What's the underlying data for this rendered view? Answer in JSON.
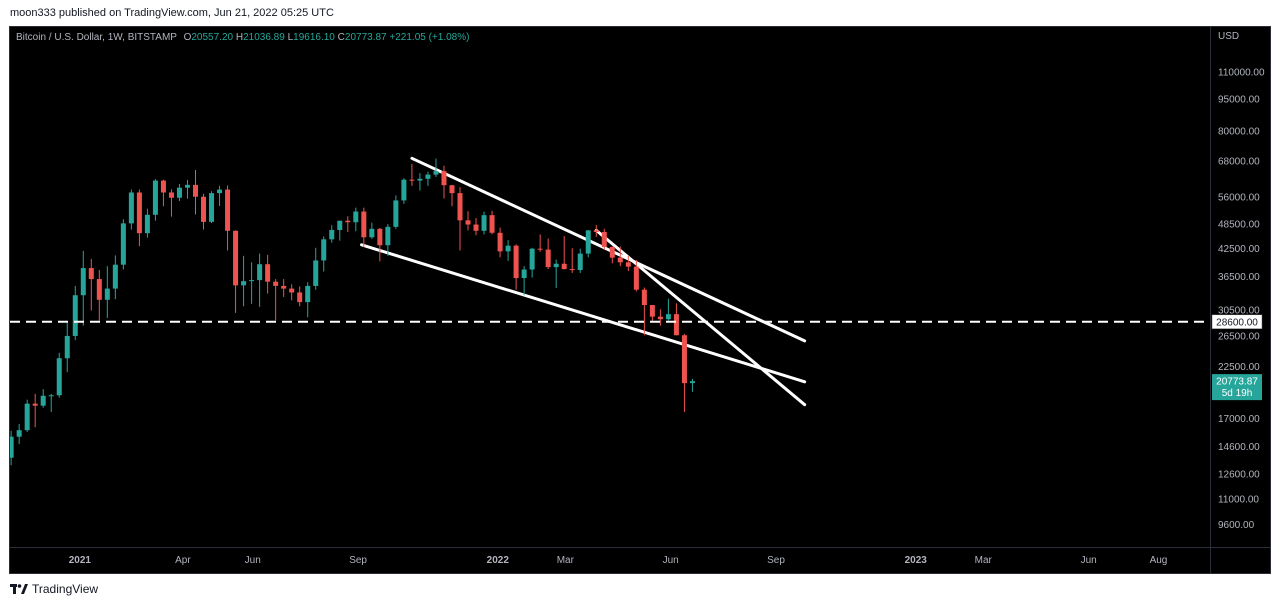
{
  "header": {
    "text": "moon333 published on TradingView.com, Jun 21, 2022 05:25 UTC"
  },
  "legend": {
    "symbol": "Bitcoin / U.S. Dollar, 1W, BITSTAMP",
    "o_label": "O",
    "o": "20557.20",
    "h_label": "H",
    "h": "21036.89",
    "l_label": "L",
    "l": "19616.10",
    "c_label": "C",
    "c": "20773.87",
    "change": "+221.05 (+1.08%)"
  },
  "footer": {
    "brand": "TradingView"
  },
  "colors": {
    "up": "#26a69a",
    "down": "#ef5350",
    "background": "#000000",
    "drawing": "#ffffff"
  },
  "chart_data": {
    "type": "candlestick",
    "title": "Bitcoin / U.S. Dollar, 1W, BITSTAMP",
    "y_scale": "log",
    "y_axis_unit": "USD",
    "ylim": [
      8500,
      140000
    ],
    "y_ticks": [
      "110000.00",
      "95000.00",
      "80000.00",
      "68000.00",
      "56000.00",
      "48500.00",
      "42500.00",
      "36500.00",
      "30500.00",
      "26500.00",
      "22500.00",
      "17000.00",
      "14600.00",
      "12600.00",
      "11000.00",
      "9600.00"
    ],
    "x_ticks": [
      {
        "label": "2021",
        "date": "2021-01-01",
        "bold": true
      },
      {
        "label": "Apr",
        "date": "2021-04-01",
        "bold": false
      },
      {
        "label": "Jun",
        "date": "2021-06-01",
        "bold": false
      },
      {
        "label": "Sep",
        "date": "2021-09-01",
        "bold": false
      },
      {
        "label": "2022",
        "date": "2022-01-01",
        "bold": true
      },
      {
        "label": "Mar",
        "date": "2022-03-01",
        "bold": false
      },
      {
        "label": "Jun",
        "date": "2022-06-01",
        "bold": false
      },
      {
        "label": "Sep",
        "date": "2022-09-01",
        "bold": false
      },
      {
        "label": "2023",
        "date": "2023-01-01",
        "bold": true
      },
      {
        "label": "Mar",
        "date": "2023-03-01",
        "bold": false
      },
      {
        "label": "Jun",
        "date": "2023-06-01",
        "bold": false
      },
      {
        "label": "Aug",
        "date": "2023-08-01",
        "bold": false
      }
    ],
    "xlim": [
      "2020-11-01",
      "2023-09-15"
    ],
    "candles": [
      {
        "t": "2020-11-02",
        "o": 13750,
        "h": 15900,
        "l": 13200,
        "c": 15400
      },
      {
        "t": "2020-11-09",
        "o": 15400,
        "h": 16500,
        "l": 14800,
        "c": 15950
      },
      {
        "t": "2020-11-16",
        "o": 15950,
        "h": 18800,
        "l": 15800,
        "c": 18400
      },
      {
        "t": "2020-11-23",
        "o": 18400,
        "h": 19400,
        "l": 16200,
        "c": 18200
      },
      {
        "t": "2020-11-30",
        "o": 18200,
        "h": 19900,
        "l": 18000,
        "c": 19200
      },
      {
        "t": "2020-12-07",
        "o": 19200,
        "h": 19400,
        "l": 17600,
        "c": 19250
      },
      {
        "t": "2020-12-14",
        "o": 19250,
        "h": 24200,
        "l": 19000,
        "c": 23500
      },
      {
        "t": "2020-12-21",
        "o": 23500,
        "h": 28400,
        "l": 21800,
        "c": 26500
      },
      {
        "t": "2020-12-28",
        "o": 26500,
        "h": 34700,
        "l": 25900,
        "c": 33000
      },
      {
        "t": "2021-01-04",
        "o": 33000,
        "h": 41900,
        "l": 28000,
        "c": 38200
      },
      {
        "t": "2021-01-11",
        "o": 38200,
        "h": 40100,
        "l": 30400,
        "c": 36000
      },
      {
        "t": "2021-01-18",
        "o": 36000,
        "h": 37800,
        "l": 28800,
        "c": 32200
      },
      {
        "t": "2021-01-25",
        "o": 32200,
        "h": 38600,
        "l": 29200,
        "c": 34200
      },
      {
        "t": "2021-02-01",
        "o": 34200,
        "h": 40900,
        "l": 32300,
        "c": 38900
      },
      {
        "t": "2021-02-08",
        "o": 38900,
        "h": 49700,
        "l": 37900,
        "c": 48600
      },
      {
        "t": "2021-02-15",
        "o": 48600,
        "h": 58300,
        "l": 47000,
        "c": 57400
      },
      {
        "t": "2021-02-22",
        "o": 57400,
        "h": 58300,
        "l": 43000,
        "c": 46100
      },
      {
        "t": "2021-03-01",
        "o": 46100,
        "h": 52600,
        "l": 45000,
        "c": 50900
      },
      {
        "t": "2021-03-08",
        "o": 50900,
        "h": 61700,
        "l": 49300,
        "c": 61200
      },
      {
        "t": "2021-03-15",
        "o": 61200,
        "h": 61500,
        "l": 53300,
        "c": 57400
      },
      {
        "t": "2021-03-22",
        "o": 57400,
        "h": 58400,
        "l": 50400,
        "c": 55800
      },
      {
        "t": "2021-03-29",
        "o": 55800,
        "h": 60100,
        "l": 54800,
        "c": 58900
      },
      {
        "t": "2021-04-05",
        "o": 58900,
        "h": 61400,
        "l": 55500,
        "c": 59800
      },
      {
        "t": "2021-04-12",
        "o": 59800,
        "h": 64800,
        "l": 51000,
        "c": 56100
      },
      {
        "t": "2021-04-19",
        "o": 56100,
        "h": 57000,
        "l": 47000,
        "c": 49000
      },
      {
        "t": "2021-04-26",
        "o": 49000,
        "h": 57800,
        "l": 48700,
        "c": 57200
      },
      {
        "t": "2021-05-03",
        "o": 57200,
        "h": 59500,
        "l": 53400,
        "c": 58300
      },
      {
        "t": "2021-05-10",
        "o": 58300,
        "h": 59600,
        "l": 42000,
        "c": 46700
      },
      {
        "t": "2021-05-17",
        "o": 46700,
        "h": 46800,
        "l": 30000,
        "c": 34800
      },
      {
        "t": "2021-05-24",
        "o": 34800,
        "h": 40800,
        "l": 31100,
        "c": 35600
      },
      {
        "t": "2021-05-31",
        "o": 35600,
        "h": 39400,
        "l": 31500,
        "c": 35800
      },
      {
        "t": "2021-06-07",
        "o": 35800,
        "h": 41300,
        "l": 31000,
        "c": 39000
      },
      {
        "t": "2021-06-14",
        "o": 39000,
        "h": 41000,
        "l": 33300,
        "c": 35500
      },
      {
        "t": "2021-06-21",
        "o": 35500,
        "h": 36000,
        "l": 28800,
        "c": 34700
      },
      {
        "t": "2021-06-28",
        "o": 34700,
        "h": 36000,
        "l": 32700,
        "c": 34200
      },
      {
        "t": "2021-07-05",
        "o": 34200,
        "h": 35000,
        "l": 32100,
        "c": 33500
      },
      {
        "t": "2021-07-12",
        "o": 33500,
        "h": 34600,
        "l": 31100,
        "c": 31800
      },
      {
        "t": "2021-07-19",
        "o": 31800,
        "h": 35400,
        "l": 29300,
        "c": 34700
      },
      {
        "t": "2021-07-26",
        "o": 34700,
        "h": 42600,
        "l": 34000,
        "c": 39800
      },
      {
        "t": "2021-08-02",
        "o": 39800,
        "h": 45300,
        "l": 37500,
        "c": 44600
      },
      {
        "t": "2021-08-09",
        "o": 44600,
        "h": 48100,
        "l": 43800,
        "c": 46900
      },
      {
        "t": "2021-08-16",
        "o": 46900,
        "h": 49300,
        "l": 44300,
        "c": 49300
      },
      {
        "t": "2021-08-23",
        "o": 49300,
        "h": 50500,
        "l": 46400,
        "c": 48900
      },
      {
        "t": "2021-08-30",
        "o": 48900,
        "h": 52900,
        "l": 46600,
        "c": 51800
      },
      {
        "t": "2021-09-06",
        "o": 51800,
        "h": 52900,
        "l": 42800,
        "c": 45100
      },
      {
        "t": "2021-09-13",
        "o": 45100,
        "h": 48800,
        "l": 44700,
        "c": 47200
      },
      {
        "t": "2021-09-20",
        "o": 47200,
        "h": 47400,
        "l": 39600,
        "c": 43200
      },
      {
        "t": "2021-09-27",
        "o": 43200,
        "h": 48400,
        "l": 40800,
        "c": 47700
      },
      {
        "t": "2021-10-04",
        "o": 47700,
        "h": 56500,
        "l": 47200,
        "c": 55000
      },
      {
        "t": "2021-10-11",
        "o": 55000,
        "h": 62000,
        "l": 54000,
        "c": 61500
      },
      {
        "t": "2021-10-18",
        "o": 61500,
        "h": 66900,
        "l": 59500,
        "c": 61200
      },
      {
        "t": "2021-10-25",
        "o": 61200,
        "h": 63700,
        "l": 58000,
        "c": 61800
      },
      {
        "t": "2021-11-01",
        "o": 61800,
        "h": 64200,
        "l": 59500,
        "c": 63200
      },
      {
        "t": "2021-11-08",
        "o": 63200,
        "h": 68900,
        "l": 62400,
        "c": 64400
      },
      {
        "t": "2021-11-15",
        "o": 64400,
        "h": 66300,
        "l": 55600,
        "c": 59700
      },
      {
        "t": "2021-11-22",
        "o": 59700,
        "h": 59800,
        "l": 53300,
        "c": 57200
      },
      {
        "t": "2021-11-29",
        "o": 57200,
        "h": 59100,
        "l": 42000,
        "c": 49400
      },
      {
        "t": "2021-12-06",
        "o": 49400,
        "h": 51900,
        "l": 46800,
        "c": 48300
      },
      {
        "t": "2021-12-13",
        "o": 48300,
        "h": 50000,
        "l": 45600,
        "c": 46700
      },
      {
        "t": "2021-12-20",
        "o": 46700,
        "h": 51800,
        "l": 45800,
        "c": 50800
      },
      {
        "t": "2021-12-27",
        "o": 50800,
        "h": 52000,
        "l": 45800,
        "c": 46200
      },
      {
        "t": "2022-01-03",
        "o": 46200,
        "h": 47500,
        "l": 40500,
        "c": 41800
      },
      {
        "t": "2022-01-10",
        "o": 41800,
        "h": 44400,
        "l": 39700,
        "c": 43100
      },
      {
        "t": "2022-01-17",
        "o": 43100,
        "h": 43400,
        "l": 34000,
        "c": 36200
      },
      {
        "t": "2022-01-24",
        "o": 36200,
        "h": 38600,
        "l": 33000,
        "c": 37900
      },
      {
        "t": "2022-01-31",
        "o": 37900,
        "h": 42600,
        "l": 36300,
        "c": 42400
      },
      {
        "t": "2022-02-07",
        "o": 42400,
        "h": 45800,
        "l": 41700,
        "c": 42200
      },
      {
        "t": "2022-02-14",
        "o": 42200,
        "h": 44800,
        "l": 38000,
        "c": 38400
      },
      {
        "t": "2022-02-21",
        "o": 38400,
        "h": 40000,
        "l": 34300,
        "c": 39100
      },
      {
        "t": "2022-02-28",
        "o": 39100,
        "h": 45400,
        "l": 37900,
        "c": 38000
      },
      {
        "t": "2022-03-07",
        "o": 38000,
        "h": 42500,
        "l": 37200,
        "c": 37800
      },
      {
        "t": "2022-03-14",
        "o": 37800,
        "h": 42400,
        "l": 37200,
        "c": 41300
      },
      {
        "t": "2022-03-21",
        "o": 41300,
        "h": 46900,
        "l": 40500,
        "c": 46800
      },
      {
        "t": "2022-03-28",
        "o": 46800,
        "h": 48200,
        "l": 45200,
        "c": 46400
      },
      {
        "t": "2022-04-04",
        "o": 46400,
        "h": 47200,
        "l": 42100,
        "c": 42800
      },
      {
        "t": "2022-04-11",
        "o": 42800,
        "h": 42900,
        "l": 39200,
        "c": 40400
      },
      {
        "t": "2022-04-18",
        "o": 40400,
        "h": 42900,
        "l": 38600,
        "c": 39400
      },
      {
        "t": "2022-04-25",
        "o": 39400,
        "h": 40800,
        "l": 37600,
        "c": 38500
      },
      {
        "t": "2022-05-02",
        "o": 38500,
        "h": 39900,
        "l": 33700,
        "c": 34000
      },
      {
        "t": "2022-05-09",
        "o": 34000,
        "h": 34400,
        "l": 26600,
        "c": 31300
      },
      {
        "t": "2022-05-16",
        "o": 31300,
        "h": 31300,
        "l": 28600,
        "c": 29400
      },
      {
        "t": "2022-05-23",
        "o": 29400,
        "h": 30600,
        "l": 28000,
        "c": 29000
      },
      {
        "t": "2022-05-30",
        "o": 29000,
        "h": 32400,
        "l": 28800,
        "c": 29800
      },
      {
        "t": "2022-06-06",
        "o": 29800,
        "h": 31600,
        "l": 26600,
        "c": 26600
      },
      {
        "t": "2022-06-13",
        "o": 26600,
        "h": 26800,
        "l": 17600,
        "c": 20550
      },
      {
        "t": "2022-06-20",
        "o": 20557.2,
        "h": 21036.89,
        "l": 19616.1,
        "c": 20773.87
      }
    ],
    "horizontal_line": {
      "price": 28600,
      "label": "28600.00",
      "style": "dashed"
    },
    "current_price": {
      "label": "20773.87",
      "countdown": "5d 19h"
    },
    "trendlines": [
      {
        "from": {
          "t": "2021-10-18",
          "p": 69000
        },
        "to": {
          "t": "2022-09-26",
          "p": 25800
        }
      },
      {
        "from": {
          "t": "2021-09-04",
          "p": 43300
        },
        "to": {
          "t": "2022-09-26",
          "p": 20700
        }
      },
      {
        "from": {
          "t": "2022-03-28",
          "p": 46800
        },
        "to": {
          "t": "2022-09-26",
          "p": 18300
        }
      }
    ]
  }
}
